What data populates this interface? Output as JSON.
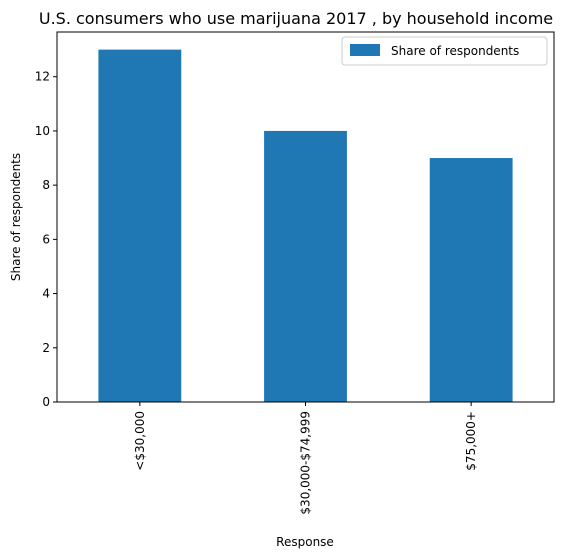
{
  "chart_data": {
    "type": "bar",
    "title": "U.S. consumers who use marijuana 2017 , by household income",
    "xlabel": "Response",
    "ylabel": "Share of respondents",
    "categories": [
      "<$30,000",
      "$30,000-$74,999",
      "$75,000+"
    ],
    "series": [
      {
        "name": "Share of respondents",
        "values": [
          13,
          10,
          9
        ]
      }
    ],
    "ylim": [
      0,
      13.65
    ],
    "yticks": [
      0,
      2,
      4,
      6,
      8,
      10,
      12
    ],
    "grid": false,
    "legend": "top-right",
    "bar_color": "#1f77b4"
  }
}
